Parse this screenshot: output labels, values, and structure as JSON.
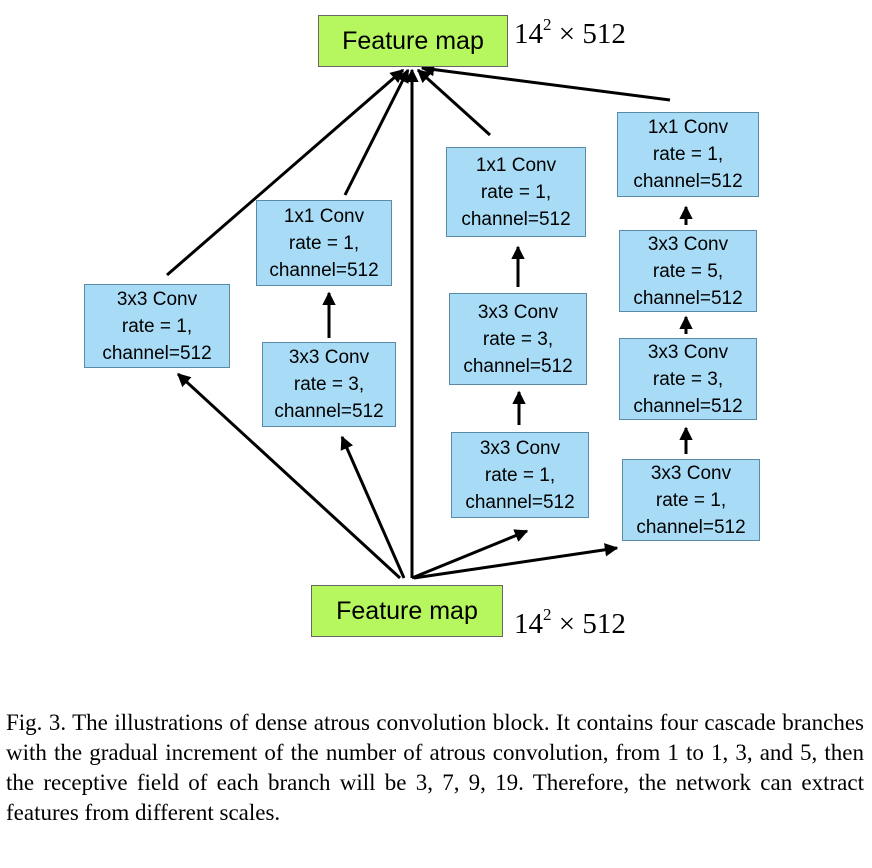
{
  "top_feature_map": {
    "label": "Feature map",
    "dims_base": "14",
    "dims_exp": "2",
    "dims_rest": " × 512"
  },
  "bottom_feature_map": {
    "label": "Feature map",
    "dims_base": "14",
    "dims_exp": "2",
    "dims_rest": " × 512"
  },
  "branch1": {
    "conv1": {
      "l1": "3x3 Conv",
      "l2": "rate = 1,",
      "l3": "channel=512"
    }
  },
  "branch2": {
    "conv1": {
      "l1": "3x3 Conv",
      "l2": "rate = 3,",
      "l3": "channel=512"
    },
    "conv2": {
      "l1": "1x1 Conv",
      "l2": "rate = 1,",
      "l3": "channel=512"
    }
  },
  "branch3": {
    "conv1": {
      "l1": "3x3 Conv",
      "l2": "rate = 1,",
      "l3": "channel=512"
    },
    "conv2": {
      "l1": "3x3 Conv",
      "l2": "rate = 3,",
      "l3": "channel=512"
    },
    "conv3": {
      "l1": "1x1 Conv",
      "l2": "rate = 1,",
      "l3": "channel=512"
    }
  },
  "branch4": {
    "conv1": {
      "l1": "3x3 Conv",
      "l2": "rate = 1,",
      "l3": "channel=512"
    },
    "conv2": {
      "l1": "3x3 Conv",
      "l2": "rate = 3,",
      "l3": "channel=512"
    },
    "conv3": {
      "l1": "3x3 Conv",
      "l2": "rate = 5,",
      "l3": "channel=512"
    },
    "conv4": {
      "l1": "1x1 Conv",
      "l2": "rate = 1,",
      "l3": "channel=512"
    }
  },
  "caption": "Fig. 3.   The illustrations of dense atrous convolution block. It contains four cascade branches with the gradual increment of the number of atrous convolution, from 1 to 1, 3, and 5, then the receptive field of each branch will be 3, 7, 9, 19. Therefore, the network can extract features from different scales.",
  "colors": {
    "feature_map": "#b6f65e",
    "conv": "#a8dcf6",
    "arrow": "#000000"
  }
}
